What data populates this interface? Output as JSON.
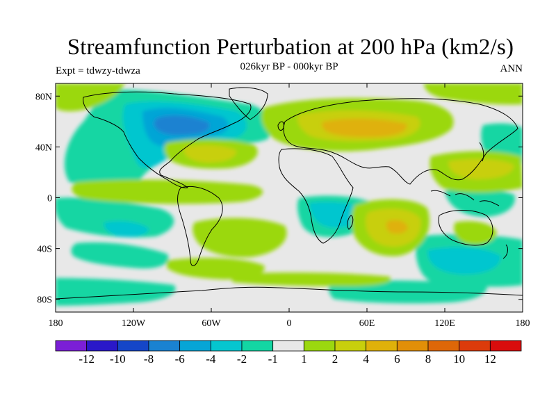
{
  "header": {
    "title": "Streamfunction Perturbation at 200 hPa (km2/s)",
    "subtitle": "026kyr BP - 000kyr BP",
    "left_label": "Expt = tdwzy-tdwza",
    "right_label": "ANN"
  },
  "map": {
    "projection": "equirectangular",
    "background_color": "#e8e8e8",
    "lon_range": [
      -180,
      180
    ],
    "lat_range": [
      -90,
      90
    ],
    "x_ticks": [
      {
        "lon": -180,
        "label": "180"
      },
      {
        "lon": -120,
        "label": "120W"
      },
      {
        "lon": -60,
        "label": "60W"
      },
      {
        "lon": 0,
        "label": "0"
      },
      {
        "lon": 60,
        "label": "60E"
      },
      {
        "lon": 120,
        "label": "120E"
      },
      {
        "lon": 180,
        "label": "180"
      }
    ],
    "y_ticks": [
      {
        "lat": 80,
        "label": "80N"
      },
      {
        "lat": 40,
        "label": "40N"
      },
      {
        "lat": 0,
        "label": "0"
      },
      {
        "lat": -40,
        "label": "40S"
      },
      {
        "lat": -80,
        "label": "80S"
      }
    ]
  },
  "colorbar": {
    "colors": [
      "#7b1fd6",
      "#2a18c9",
      "#1546c8",
      "#1a82d1",
      "#06a5d6",
      "#05c6cf",
      "#13d6a3",
      "#e8e8e8",
      "#9bd80f",
      "#c8cf0c",
      "#dfb10a",
      "#e28f08",
      "#de6708",
      "#dc3b0b",
      "#d90d0d"
    ],
    "labels": [
      "-12",
      "-10",
      "-8",
      "-6",
      "-4",
      "-2",
      "-1",
      "1",
      "2",
      "4",
      "6",
      "8",
      "10",
      "12"
    ]
  }
}
